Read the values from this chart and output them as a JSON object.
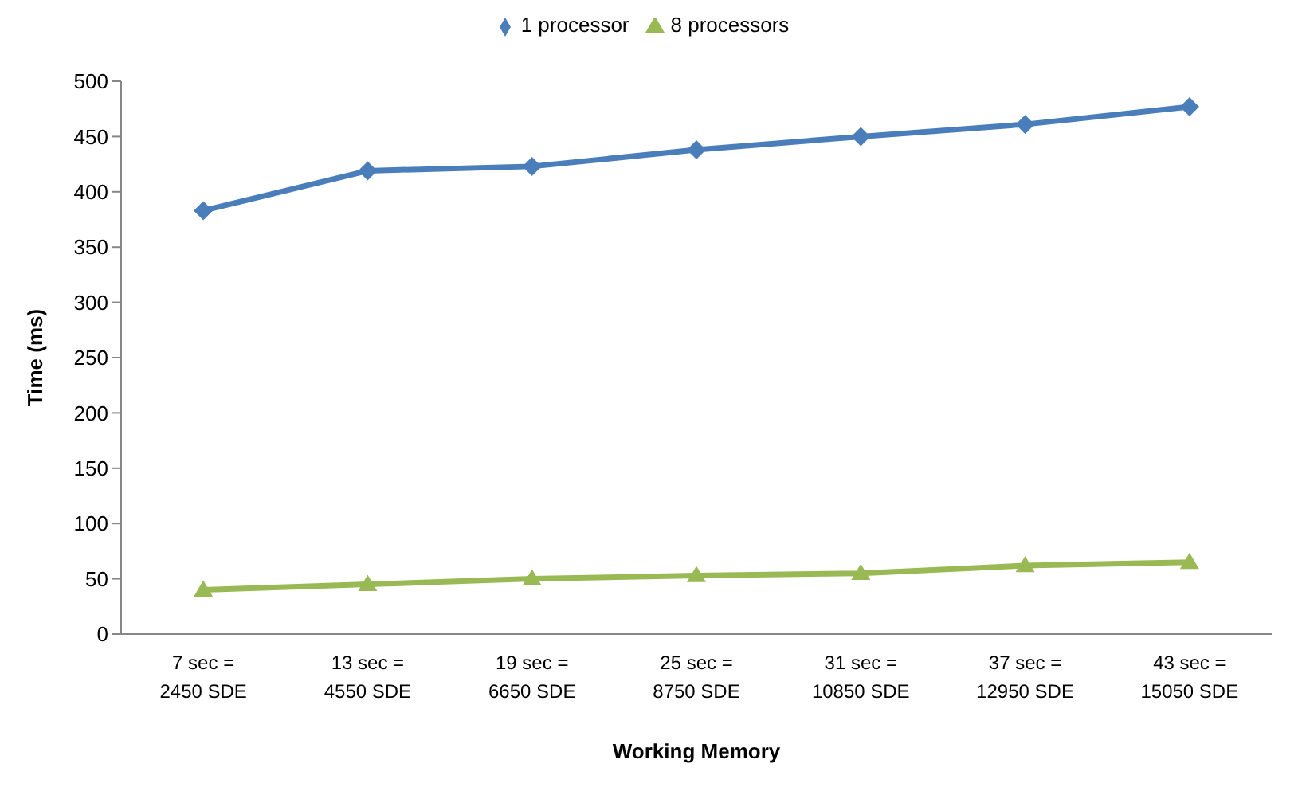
{
  "chart_data": {
    "type": "line",
    "xlabel": "Working Memory",
    "ylabel": "Time (ms)",
    "categories": [
      "7 sec =\n2450 SDE",
      "13 sec =\n4550 SDE",
      "19 sec =\n6650 SDE",
      "25 sec =\n8750 SDE",
      "31 sec =\n10850 SDE",
      "37 sec =\n12950 SDE",
      "43 sec =\n15050 SDE"
    ],
    "series": [
      {
        "name": "1 processor",
        "color": "#4a7ebb",
        "marker": "diamond",
        "values": [
          383,
          419,
          423,
          438,
          450,
          461,
          477
        ]
      },
      {
        "name": "8 processors",
        "color": "#98b954",
        "marker": "triangle",
        "values": [
          40,
          45,
          50,
          53,
          55,
          62,
          65
        ]
      }
    ],
    "ylim": [
      0,
      500
    ],
    "yticks": [
      0,
      50,
      100,
      150,
      200,
      250,
      300,
      350,
      400,
      450,
      500
    ],
    "grid": false,
    "legend": "top"
  }
}
